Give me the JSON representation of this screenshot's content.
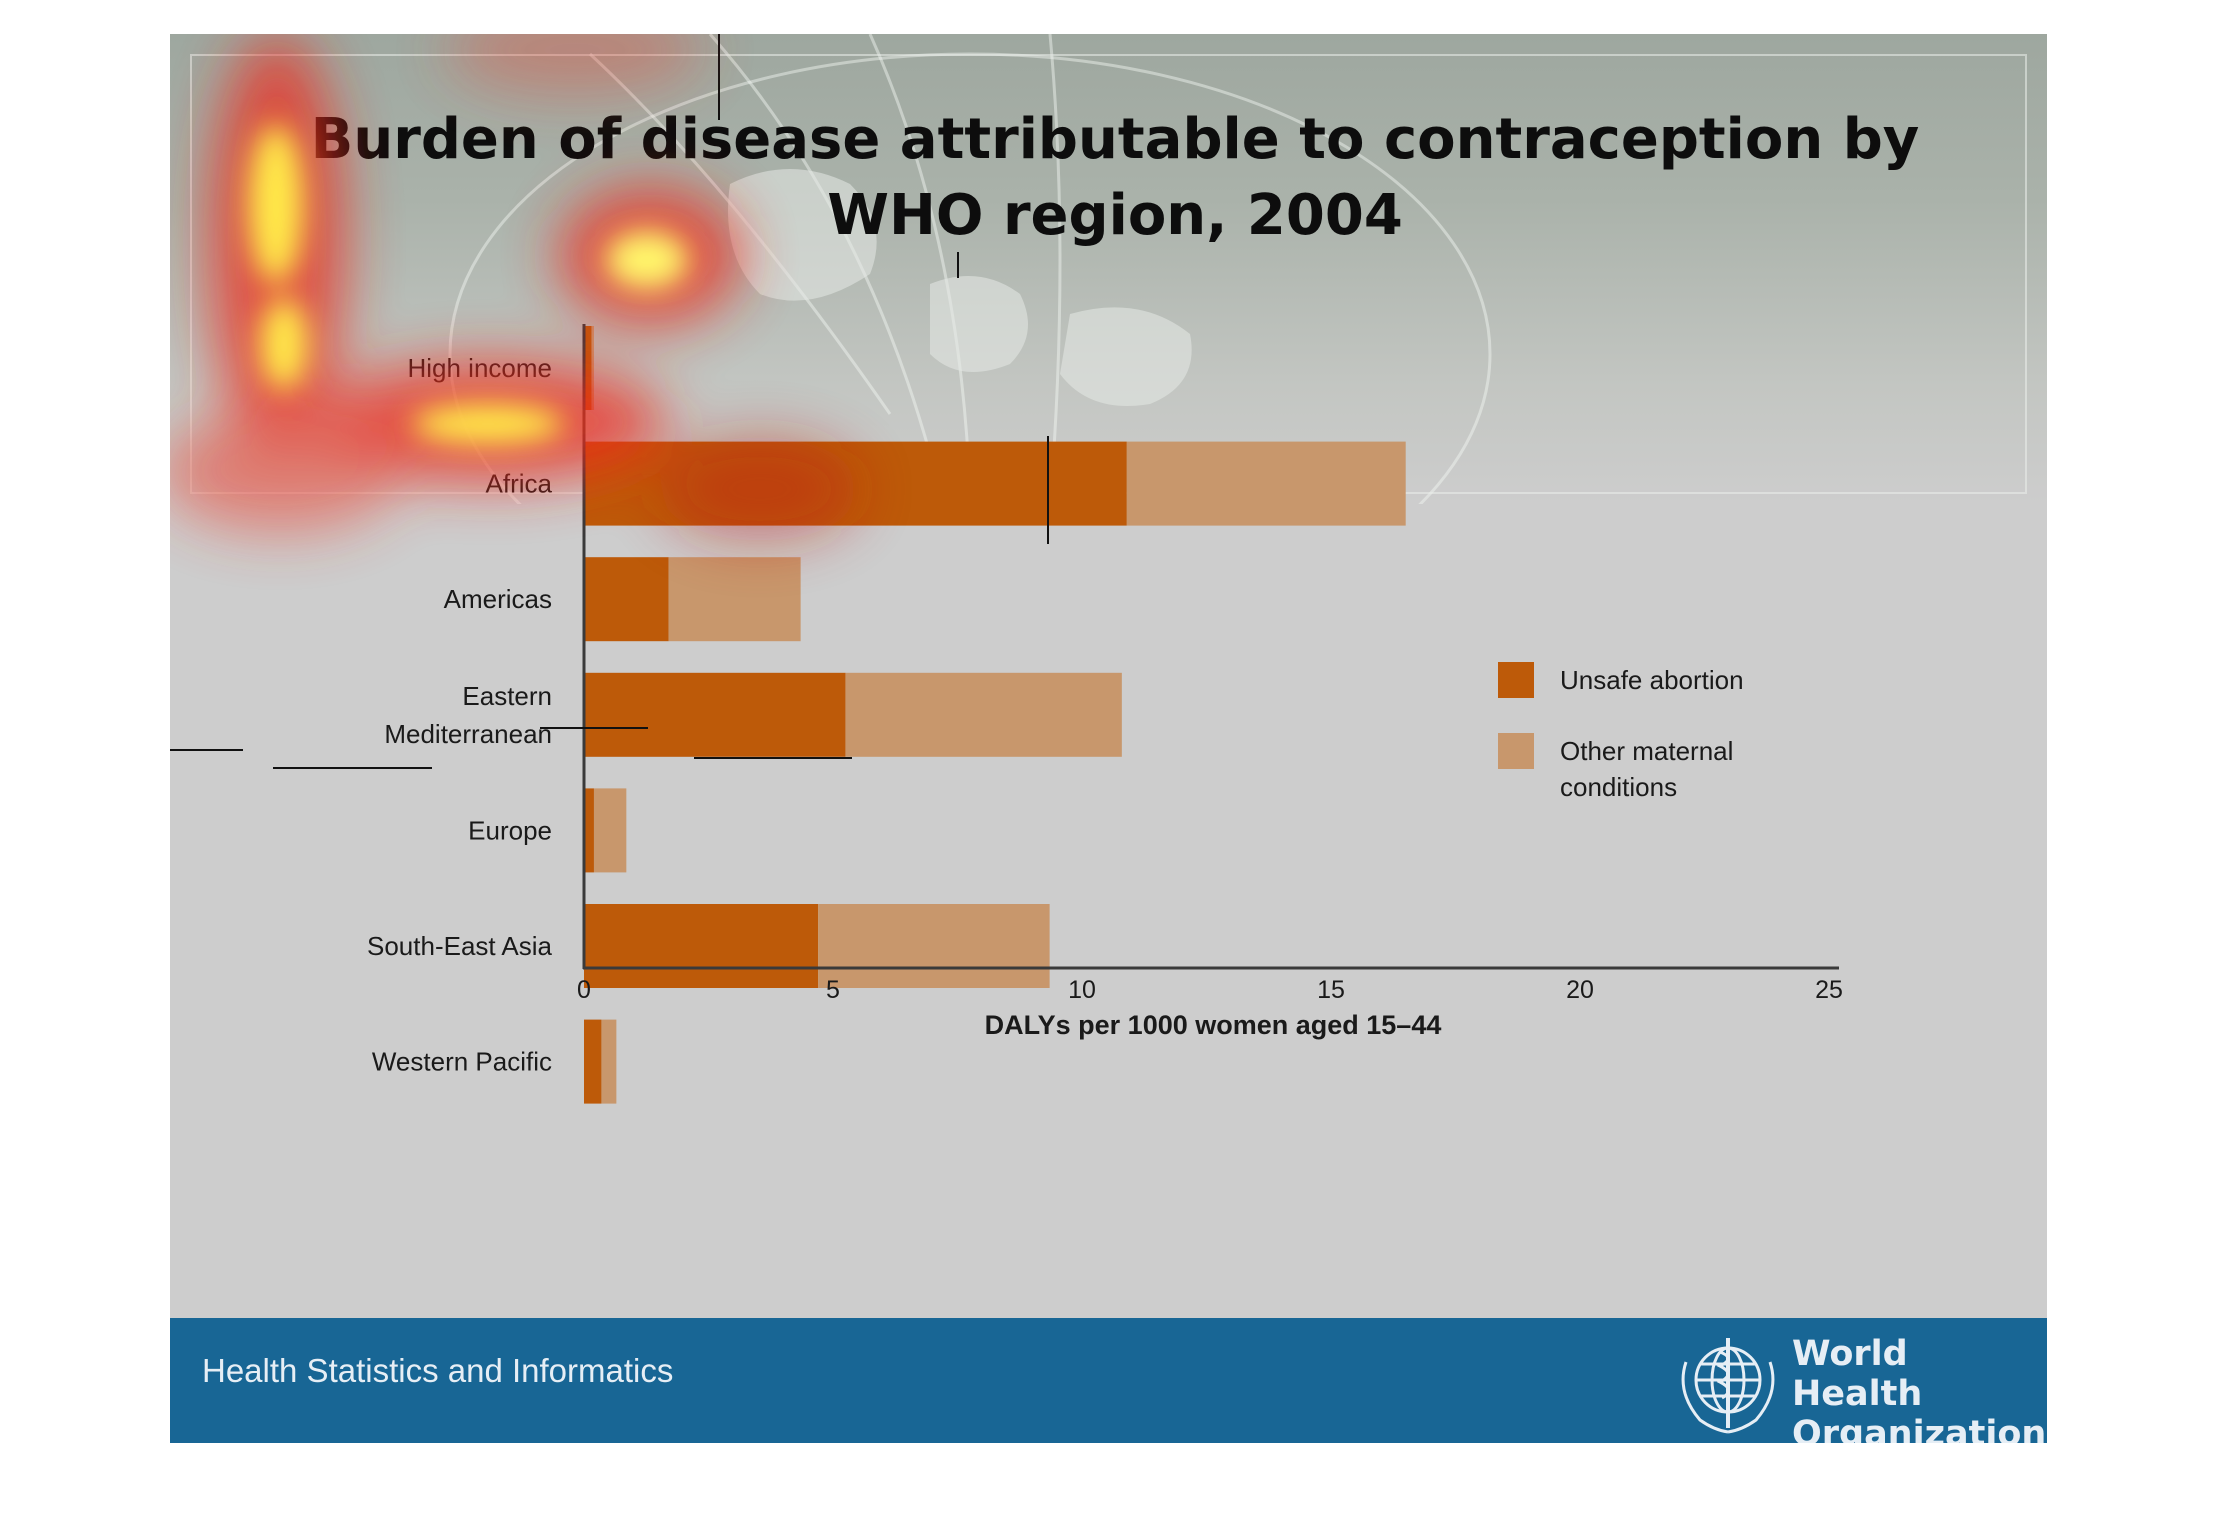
{
  "title": "Burden of disease attributable to contraception by WHO region, 2004",
  "footer": {
    "label": "Health Statistics and Informatics",
    "org_line1": "World Health",
    "org_line2": "Organization"
  },
  "colors": {
    "unsafe_abortion": "#bd5a09",
    "other_maternal": "#c8976c",
    "footer_band": "#186695",
    "slide_background": "#cdcdcd"
  },
  "icons": {
    "footer_logo": "who-emblem-icon"
  },
  "chart_data": {
    "type": "bar",
    "orientation": "horizontal",
    "stacked": true,
    "categories": [
      "High income",
      "Africa",
      "Americas",
      "Eastern Mediterranean",
      "Europe",
      "South-East Asia",
      "Western Pacific"
    ],
    "series": [
      {
        "name": "Unsafe abortion",
        "values": [
          0.15,
          10.9,
          1.7,
          5.25,
          0.2,
          4.7,
          0.35
        ]
      },
      {
        "name": "Other maternal conditions",
        "values": [
          0.05,
          5.6,
          2.65,
          5.55,
          0.65,
          4.65,
          0.3
        ]
      }
    ],
    "xlabel": "DALYs per 1000 women aged 15–44",
    "ylabel": "",
    "xlim": [
      0,
      25
    ],
    "xticks": [
      "0",
      "5",
      "10",
      "15",
      "20",
      "25"
    ],
    "grid": false,
    "legend": {
      "position": "right",
      "entries": [
        {
          "lines": [
            "Unsafe abortion"
          ]
        },
        {
          "lines": [
            "Other maternal",
            "conditions"
          ]
        }
      ]
    },
    "category_label_lines": [
      [
        "High income"
      ],
      [
        "Africa"
      ],
      [
        "Americas"
      ],
      [
        "Eastern",
        "Mediterranean"
      ],
      [
        "Europe"
      ],
      [
        "South-East Asia"
      ],
      [
        "Western Pacific"
      ]
    ]
  }
}
